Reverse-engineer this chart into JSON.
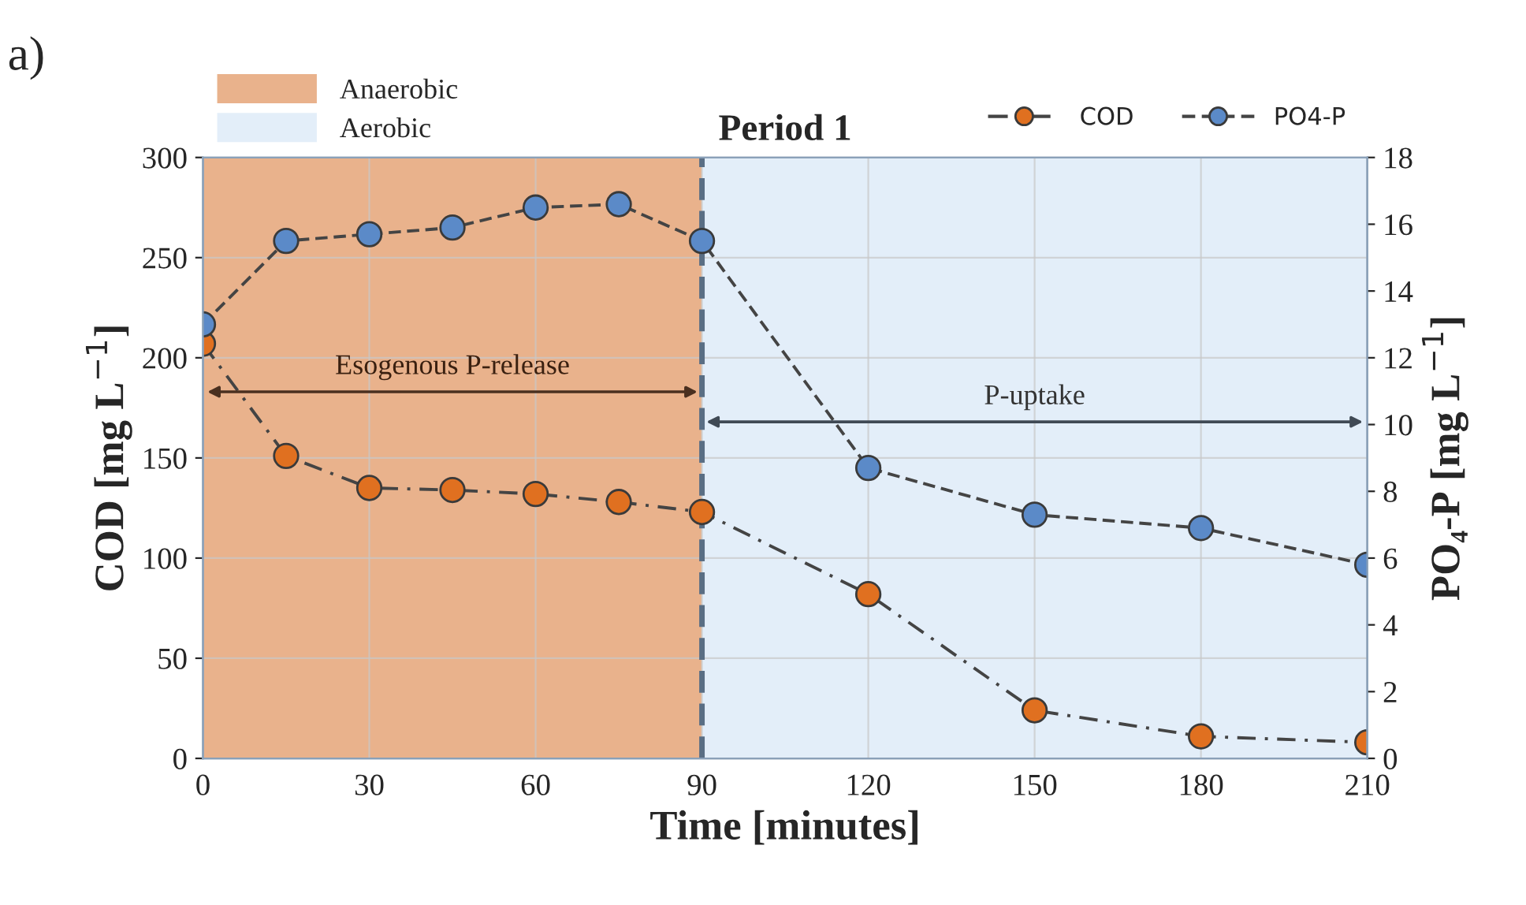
{
  "chart_data": {
    "type": "line",
    "title": "Period 1",
    "xlabel": "Time [minutes]",
    "ylabel": "COD [mg L$^{−1}$]",
    "y2label": "PO₄-P [mg L$^{−1}$]",
    "x": [
      0,
      15,
      30,
      45,
      60,
      75,
      90,
      120,
      150,
      180,
      210
    ],
    "series": [
      {
        "name": "COD",
        "color": "#e07020",
        "line_style": "dashdot",
        "values": [
          207,
          151,
          135,
          134,
          132,
          128,
          123,
          82,
          24,
          11,
          8
        ]
      },
      {
        "name": "PO4-P",
        "color": "#5b8ac8",
        "line_style": "dashed",
        "axis": "y2",
        "values": [
          13.0,
          15.5,
          15.7,
          15.9,
          16.5,
          16.6,
          15.5,
          8.7,
          7.3,
          6.9,
          5.8
        ]
      }
    ],
    "marker": "circle",
    "xlim": [
      0,
      210
    ],
    "xticks": [
      0,
      30,
      60,
      90,
      120,
      150,
      180,
      210
    ],
    "ylim": [
      0,
      300
    ],
    "yticks": [
      0,
      50,
      100,
      150,
      200,
      250,
      300
    ],
    "y2lim": [
      0,
      18
    ],
    "y2ticks": [
      0,
      2,
      4,
      6,
      8,
      10,
      12,
      14,
      16,
      18
    ],
    "bands": [
      {
        "axis": "x",
        "from": 0,
        "to": 90,
        "label": "Anaerobic",
        "color": "#e9b28c"
      },
      {
        "axis": "x",
        "from": 90,
        "to": 210,
        "label": "Aerobic",
        "color": "#e3eef9"
      }
    ],
    "ref_lines": [
      {
        "axis": "x",
        "value": 90,
        "color": "#5a6e84",
        "line_style": "dashed"
      }
    ],
    "annotations": [
      "Esogenous P-release",
      "P-uptake",
      "a)"
    ],
    "grid": true,
    "legend": "top right"
  }
}
